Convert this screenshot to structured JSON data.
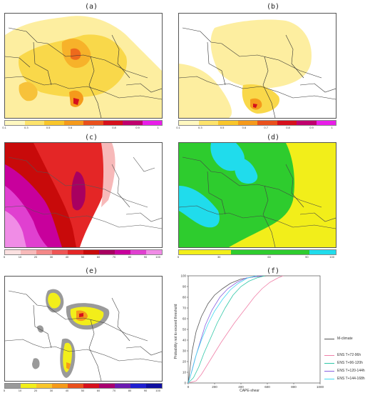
{
  "panels": {
    "a": {
      "label": "(a)"
    },
    "b": {
      "label": "(b)"
    },
    "c": {
      "label": "(c)"
    },
    "d": {
      "label": "(d)"
    },
    "e": {
      "label": "(e)"
    },
    "f": {
      "label": "(f)"
    }
  },
  "colorbars": {
    "prob": {
      "ticks": [
        "0.1",
        "0.3",
        "0.5",
        "0.6",
        "0.7",
        "0.8",
        "0.9",
        "1"
      ],
      "colors": [
        "#fff8c0",
        "#fde36b",
        "#f9c62a",
        "#f59a1b",
        "#e9501c",
        "#d6101c",
        "#c0006e",
        "#e81ee8"
      ]
    },
    "pct": {
      "ticks": [
        "5",
        "10",
        "20",
        "30",
        "40",
        "50",
        "60",
        "70",
        "80",
        "90",
        "100"
      ],
      "colors": [
        "#fbe1e1",
        "#f7b9b9",
        "#f38888",
        "#ee5555",
        "#e42626",
        "#c80a0a",
        "#a80060",
        "#c8009c",
        "#e040d0",
        "#f08ce6"
      ]
    },
    "cat": {
      "ticks": [
        "5",
        "30",
        "60",
        "90",
        "100"
      ],
      "colors": [
        "#f2ee1a",
        "#f2ee1a",
        "#2ecc2e",
        "#2ecc2e",
        "#2ecc2e",
        "#20dcec"
      ]
    },
    "multi": {
      "ticks": [
        "5",
        "10",
        "20",
        "30",
        "40",
        "50",
        "60",
        "70",
        "80",
        "90",
        "100"
      ],
      "colors": [
        "#9a9a9a",
        "#f2ee1a",
        "#f9c62a",
        "#f59a1b",
        "#e9501c",
        "#d6101c",
        "#a8006e",
        "#6a1bb0",
        "#2020d0",
        "#1010a0"
      ]
    }
  },
  "icons": {
    "map-a": "geographic-map-icon",
    "map-b": "geographic-map-icon",
    "map-c": "geographic-map-icon",
    "map-d": "geographic-map-icon",
    "map-e": "geographic-map-icon"
  },
  "chart_data": {
    "type": "line",
    "xlabel": "CAPE-shear",
    "ylabel": "Probability not to exceed threshold",
    "xlim": [
      0,
      1000
    ],
    "ylim": [
      0,
      100
    ],
    "x_ticks": [
      "0",
      "200",
      "400",
      "600",
      "800",
      "1000"
    ],
    "y_ticks": [
      "0",
      "10",
      "20",
      "30",
      "40",
      "50",
      "60",
      "70",
      "80",
      "90",
      "100"
    ],
    "grid": false,
    "legend_position": "right",
    "series": [
      {
        "name": "M-climate",
        "color": "#555555",
        "x": [
          0,
          10,
          30,
          60,
          100,
          150,
          200,
          260,
          320,
          400,
          500,
          600,
          700
        ],
        "y": [
          0,
          10,
          30,
          48,
          62,
          74,
          82,
          88,
          93,
          97,
          99,
          100,
          100
        ]
      },
      {
        "name": "ENS T+72-96h",
        "color": "#f080a8",
        "x": [
          0,
          60,
          100,
          150,
          200,
          250,
          300,
          350,
          400,
          450,
          500,
          560,
          620,
          680,
          720
        ],
        "y": [
          0,
          2,
          8,
          18,
          28,
          38,
          47,
          56,
          64,
          72,
          80,
          88,
          94,
          98,
          100
        ]
      },
      {
        "name": "ENS T+96-120h",
        "color": "#30c8a8",
        "x": [
          0,
          40,
          80,
          120,
          170,
          220,
          280,
          340,
          400,
          460,
          520,
          580
        ],
        "y": [
          0,
          5,
          15,
          28,
          42,
          56,
          70,
          82,
          90,
          95,
          98,
          100
        ]
      },
      {
        "name": "ENS T+120-144h",
        "color": "#8860e0",
        "x": [
          0,
          20,
          50,
          90,
          130,
          180,
          240,
          300,
          370,
          440,
          500,
          560
        ],
        "y": [
          0,
          8,
          22,
          38,
          54,
          68,
          80,
          88,
          94,
          98,
          99,
          100
        ]
      },
      {
        "name": "ENS T+144-168h",
        "color": "#40d8f0",
        "x": [
          0,
          30,
          60,
          100,
          150,
          200,
          260,
          320,
          380,
          450,
          520
        ],
        "y": [
          0,
          12,
          26,
          40,
          55,
          67,
          78,
          87,
          93,
          98,
          100
        ]
      }
    ]
  }
}
